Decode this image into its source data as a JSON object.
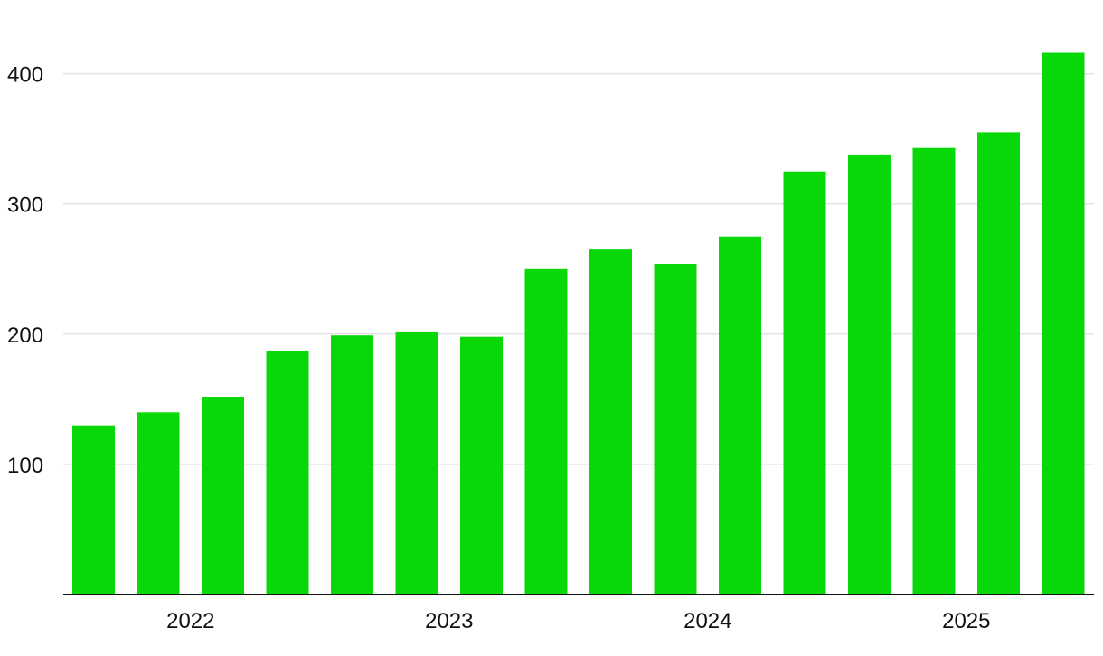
{
  "chart_data": {
    "type": "bar",
    "title": "",
    "xlabel": "",
    "ylabel": "",
    "ylim": [
      0,
      435
    ],
    "grid": true,
    "legend": "none",
    "colors": {
      "bar": "#08d808",
      "grid": "#e3e3e3",
      "axis": "#111111",
      "text": "#111111"
    },
    "y_ticks": [
      100,
      200,
      300,
      400
    ],
    "x_tick_labels": [
      {
        "label": "2022",
        "between": [
          1,
          2
        ]
      },
      {
        "label": "2023",
        "between": [
          5,
          6
        ]
      },
      {
        "label": "2024",
        "between": [
          9,
          10
        ]
      },
      {
        "label": "2025",
        "between": [
          13,
          14
        ]
      }
    ],
    "values": [
      130,
      140,
      152,
      187,
      199,
      202,
      198,
      250,
      265,
      254,
      275,
      325,
      338,
      343,
      355,
      416
    ]
  }
}
